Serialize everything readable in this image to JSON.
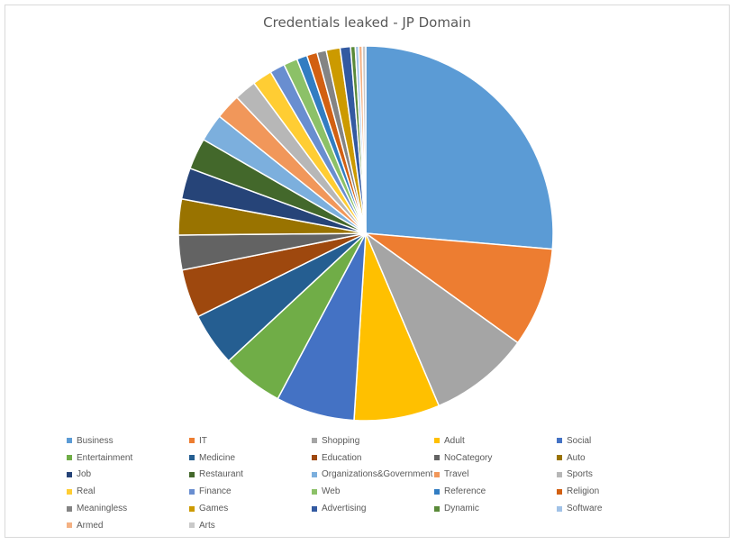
{
  "chart_data": {
    "type": "pie",
    "title": "Credentials leaked - JP Domain",
    "legend_position": "bottom",
    "slices": [
      {
        "label": "Business",
        "value": 26.4,
        "color": "#5B9BD5"
      },
      {
        "label": "IT",
        "value": 8.6,
        "color": "#ED7D31"
      },
      {
        "label": "Shopping",
        "value": 8.7,
        "color": "#A5A5A5"
      },
      {
        "label": "Adult",
        "value": 7.4,
        "color": "#FFC000"
      },
      {
        "label": "Social",
        "value": 6.8,
        "color": "#4472C4"
      },
      {
        "label": "Entertainment",
        "value": 5.3,
        "color": "#70AD47"
      },
      {
        "label": "Medicine",
        "value": 4.6,
        "color": "#255E91"
      },
      {
        "label": "Education",
        "value": 4.2,
        "color": "#9E480E"
      },
      {
        "label": "NoCategory",
        "value": 3.0,
        "color": "#636363"
      },
      {
        "label": "Auto",
        "value": 3.1,
        "color": "#997300"
      },
      {
        "label": "Job",
        "value": 2.7,
        "color": "#264478"
      },
      {
        "label": "Restaurant",
        "value": 2.7,
        "color": "#43682B"
      },
      {
        "label": "Organizations&Government",
        "value": 2.4,
        "color": "#7CAFDD"
      },
      {
        "label": "Travel",
        "value": 2.2,
        "color": "#F1975A"
      },
      {
        "label": "Sports",
        "value": 1.9,
        "color": "#B7B7B7"
      },
      {
        "label": "Real",
        "value": 1.7,
        "color": "#FFCD33"
      },
      {
        "label": "Finance",
        "value": 1.3,
        "color": "#698ED0"
      },
      {
        "label": "Web",
        "value": 1.2,
        "color": "#8CC168"
      },
      {
        "label": "Reference",
        "value": 0.9,
        "color": "#327DC2"
      },
      {
        "label": "Religion",
        "value": 0.9,
        "color": "#D26012"
      },
      {
        "label": "Meaningless",
        "value": 0.8,
        "color": "#848484"
      },
      {
        "label": "Games",
        "value": 1.2,
        "color": "#CC9A00"
      },
      {
        "label": "Advertising",
        "value": 0.9,
        "color": "#335AA1"
      },
      {
        "label": "Dynamic",
        "value": 0.4,
        "color": "#5A8A39"
      },
      {
        "label": "Software",
        "value": 0.3,
        "color": "#A1C2E7"
      },
      {
        "label": "Armed",
        "value": 0.3,
        "color": "#F4B183"
      },
      {
        "label": "Arts",
        "value": 0.3,
        "color": "#C9C9C9"
      }
    ]
  }
}
